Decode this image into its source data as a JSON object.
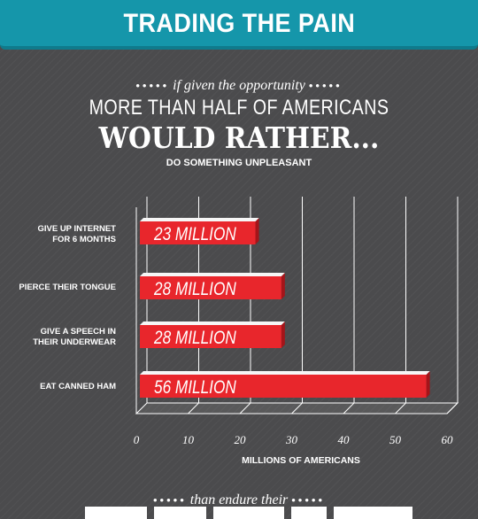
{
  "header": {
    "title": "TRADING THE PAIN"
  },
  "intro": {
    "dots": "•••••",
    "kicker": "if given the opportunity",
    "line1": "MORE THAN HALF OF AMERICANS",
    "line2": "WOULD RATHER...",
    "subhead": "DO SOMETHING UNPLEASANT"
  },
  "outro": {
    "kicker": "than endure their"
  },
  "colors": {
    "banner": "#1596aa",
    "bar": "#e8262c",
    "background": "#4b4b4d"
  },
  "chart_data": {
    "type": "bar",
    "orientation": "horizontal",
    "categories": [
      "GIVE UP INTERNET\nFOR 6 MONTHS",
      "PIERCE THEIR TONGUE",
      "GIVE A SPEECH IN\nTHEIR UNDERWEAR",
      "EAT CANNED HAM"
    ],
    "values": [
      23,
      28,
      28,
      56
    ],
    "data_labels": [
      "23 MILLION",
      "28 MILLION",
      "28 MILLION",
      "56 MILLION"
    ],
    "xlabel": "MILLIONS OF AMERICANS",
    "xlim": [
      0,
      60
    ],
    "ticks": [
      "0",
      "10",
      "20",
      "30",
      "40",
      "50",
      "60"
    ],
    "grid": true
  }
}
